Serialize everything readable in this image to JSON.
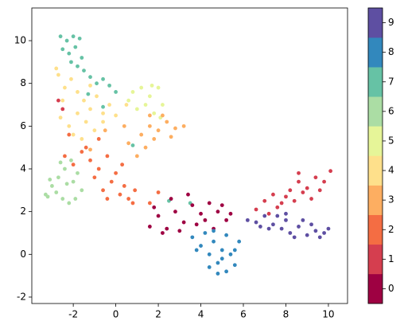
{
  "chart_data": {
    "type": "scatter",
    "xlim": [
      -3.95,
      10.9
    ],
    "ylim": [
      -2.3,
      11.53
    ],
    "xticks": [
      -2,
      0,
      2,
      4,
      6,
      8,
      10
    ],
    "yticks": [
      -2,
      0,
      2,
      4,
      6,
      8,
      10
    ],
    "colorbar": {
      "lim": [
        -0.5,
        9.5
      ],
      "ticks": [
        0,
        1,
        2,
        3,
        4,
        5,
        6,
        7,
        8,
        9
      ],
      "colors": [
        "#9e0142",
        "#d53e4f",
        "#f46d43",
        "#fdae61",
        "#fee08b",
        "#e6f598",
        "#abdda4",
        "#66c2a5",
        "#3288bd",
        "#5e4fa2"
      ]
    },
    "series": [
      {
        "color": "#fee08b",
        "x": [
          -2.7,
          -2.4,
          -2.1,
          -1.8,
          -1.5,
          -1.2,
          -0.9,
          -0.6,
          -0.3,
          -2.6,
          -2.2,
          -1.8,
          -1.4,
          -1.0,
          -0.6,
          -2.5,
          -2.0,
          -1.6,
          0.0,
          0.5,
          -2.8,
          -1.2
        ],
        "values": [
          8.4,
          7.8,
          8.2,
          7.6,
          7.2,
          6.8,
          7.4,
          6.6,
          7.0,
          6.4,
          6.0,
          6.6,
          6.2,
          5.8,
          6.2,
          7.2,
          5.6,
          5.4,
          6.5,
          7.0,
          8.7,
          7.9
        ]
      },
      {
        "color": "#e6f598",
        "x": [
          0.8,
          1.2,
          1.6,
          2.0,
          2.2,
          1.0,
          1.4,
          1.8,
          2.1,
          0.6,
          1.7
        ],
        "values": [
          7.6,
          7.8,
          7.4,
          7.8,
          7.0,
          6.8,
          7.0,
          6.6,
          6.4,
          7.2,
          7.9
        ]
      },
      {
        "color": "#fdae61",
        "x": [
          1.2,
          1.6,
          2.0,
          2.4,
          2.8,
          3.2,
          1.4,
          1.8,
          2.2,
          0.6,
          1.0,
          0.4,
          1.6,
          -1.2,
          -0.5,
          2.6
        ],
        "values": [
          5.6,
          6.0,
          5.8,
          6.2,
          5.9,
          6.0,
          5.0,
          5.4,
          6.5,
          5.2,
          4.6,
          6.0,
          6.5,
          4.9,
          5.8,
          5.5
        ]
      },
      {
        "color": "#abdda4",
        "x": [
          -3.3,
          -3.0,
          -2.7,
          -2.4,
          -2.1,
          -1.8,
          -1.6,
          -3.1,
          -2.8,
          -2.5,
          -2.2,
          -1.9,
          -2.6,
          -2.3,
          -2.0,
          -3.2
        ],
        "values": [
          2.8,
          3.2,
          3.6,
          4.0,
          4.4,
          3.8,
          3.0,
          3.5,
          2.9,
          2.6,
          2.4,
          2.6,
          4.3,
          3.3,
          3.4,
          2.7
        ]
      },
      {
        "color": "#f46d43",
        "x": [
          -2.4,
          -2.0,
          -1.6,
          -1.2,
          -0.8,
          -0.4,
          0.0,
          0.4,
          0.8,
          -1.0,
          -0.6,
          -0.2,
          0.2,
          0.6,
          -1.4,
          -0.8,
          0.3,
          0.9,
          -2.2,
          -0.4,
          1.6,
          2.0
        ],
        "values": [
          4.6,
          4.2,
          4.8,
          4.4,
          4.0,
          4.6,
          3.8,
          3.2,
          2.4,
          3.6,
          3.0,
          3.4,
          2.8,
          2.6,
          5.0,
          5.4,
          4.2,
          3.0,
          5.6,
          2.6,
          2.4,
          2.9
        ]
      },
      {
        "color": "#66c2a5",
        "x": [
          -2.6,
          -2.3,
          -2.0,
          -1.7,
          -2.5,
          -2.2,
          -1.9,
          -1.6,
          -1.5,
          -1.2,
          -0.9,
          -0.6,
          -0.3,
          0.0,
          -2.1,
          -1.8,
          -1.3,
          -0.6,
          0.8,
          2.5,
          3.5
        ],
        "values": [
          10.2,
          10.0,
          10.2,
          10.1,
          9.6,
          9.4,
          9.7,
          9.2,
          8.6,
          8.3,
          8.0,
          8.2,
          7.9,
          7.6,
          9.0,
          8.8,
          7.5,
          6.9,
          5.1,
          2.5,
          2.4
        ]
      },
      {
        "color": "#d53e4f",
        "x": [
          6.6,
          7.0,
          7.4,
          7.8,
          8.2,
          8.6,
          9.0,
          9.4,
          9.8,
          10.1,
          7.6,
          8.0,
          8.4,
          8.8,
          9.2,
          9.6,
          7.2,
          8.6,
          -2.7,
          -2.5
        ],
        "values": [
          2.1,
          2.5,
          2.8,
          2.4,
          3.0,
          3.4,
          3.1,
          3.6,
          3.4,
          3.9,
          2.2,
          2.7,
          2.5,
          2.9,
          2.6,
          3.0,
          1.9,
          3.8,
          7.2,
          6.8
        ]
      },
      {
        "color": "#5e4fa2",
        "x": [
          6.2,
          6.6,
          7.0,
          7.4,
          7.8,
          8.2,
          8.6,
          9.0,
          9.4,
          9.8,
          7.2,
          7.6,
          8.0,
          8.4,
          8.8,
          9.2,
          9.6,
          6.8,
          10.0,
          8.0
        ],
        "values": [
          1.6,
          1.5,
          1.8,
          1.4,
          1.2,
          1.0,
          1.3,
          0.9,
          1.1,
          1.0,
          1.2,
          1.8,
          1.6,
          0.8,
          1.6,
          1.4,
          0.8,
          1.3,
          1.2,
          1.9
        ]
      },
      {
        "color": "#9e0142",
        "x": [
          1.6,
          2.0,
          2.4,
          2.8,
          3.2,
          3.6,
          4.0,
          4.4,
          4.8,
          5.2,
          2.2,
          3.0,
          3.8,
          4.6,
          5.4,
          2.6,
          3.4,
          4.2,
          1.8,
          5.0
        ],
        "values": [
          1.3,
          1.8,
          1.2,
          2.0,
          1.5,
          2.3,
          1.9,
          2.4,
          2.0,
          1.6,
          1.0,
          1.1,
          1.4,
          1.2,
          1.9,
          2.6,
          2.8,
          1.6,
          2.2,
          2.3
        ]
      },
      {
        "color": "#3288bd",
        "x": [
          3.6,
          4.0,
          4.4,
          4.8,
          5.2,
          5.6,
          4.2,
          4.6,
          5.0,
          5.4,
          5.8,
          4.4,
          4.8,
          5.2,
          3.8,
          4.6,
          5.0,
          5.6
        ],
        "values": [
          0.8,
          0.4,
          0.0,
          -0.4,
          -0.8,
          -0.5,
          1.0,
          0.6,
          0.2,
          0.0,
          0.6,
          -0.6,
          -0.9,
          0.9,
          0.2,
          1.1,
          -0.2,
          0.2
        ]
      }
    ]
  }
}
